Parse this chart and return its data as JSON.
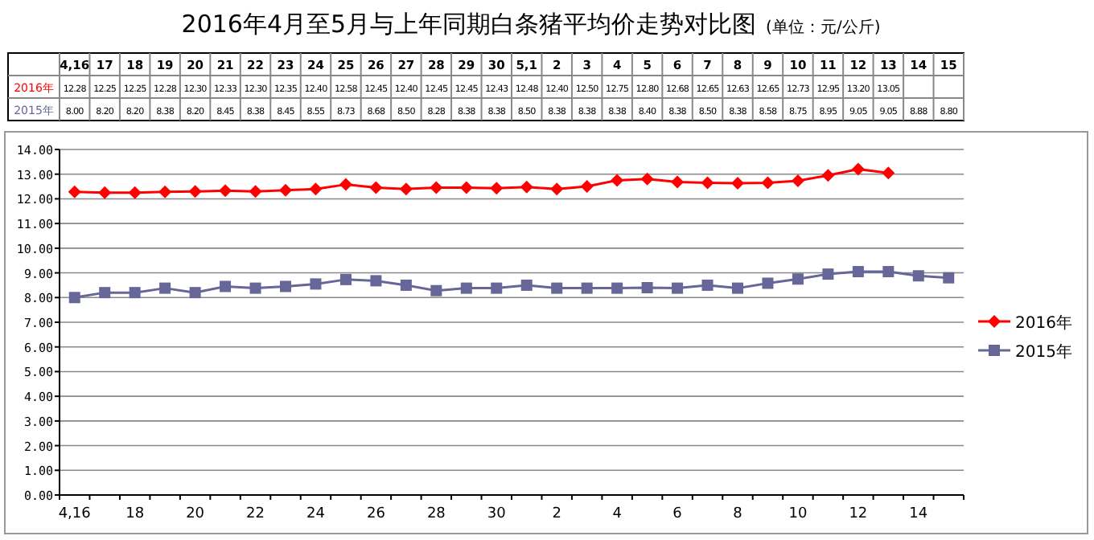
{
  "chart_data": {
    "type": "line",
    "title": "2016年4月至5月与上年同期白条猪平均价走势对比图",
    "subtitle": "(单位：元/公斤)",
    "categories": [
      "4,16",
      "17",
      "18",
      "19",
      "20",
      "21",
      "22",
      "23",
      "24",
      "25",
      "26",
      "27",
      "28",
      "29",
      "30",
      "5,1",
      "2",
      "3",
      "4",
      "5",
      "6",
      "7",
      "8",
      "9",
      "10",
      "11",
      "12",
      "13",
      "14",
      "15"
    ],
    "series": [
      {
        "name": "2016年",
        "color": "#ff0000",
        "marker": "diamond",
        "values": [
          12.28,
          12.25,
          12.25,
          12.28,
          12.3,
          12.33,
          12.3,
          12.35,
          12.4,
          12.58,
          12.45,
          12.4,
          12.45,
          12.45,
          12.43,
          12.48,
          12.4,
          12.5,
          12.75,
          12.8,
          12.68,
          12.65,
          12.63,
          12.65,
          12.73,
          12.95,
          13.2,
          13.05,
          null,
          null
        ],
        "value_labels": [
          "12.28",
          "12.25",
          "12.25",
          "12.28",
          "12.30",
          "12.33",
          "12.30",
          "12.35",
          "12.40",
          "12.58",
          "12.45",
          "12.40",
          "12.45",
          "12.45",
          "12.43",
          "12.48",
          "12.40",
          "12.50",
          "12.75",
          "12.80",
          "12.68",
          "12.65",
          "12.63",
          "12.65",
          "12.73",
          "12.95",
          "13.20",
          "13.05",
          null,
          null
        ]
      },
      {
        "name": "2015年",
        "color": "#666699",
        "marker": "square",
        "values": [
          8.0,
          8.2,
          8.2,
          8.38,
          8.2,
          8.45,
          8.38,
          8.45,
          8.55,
          8.73,
          8.68,
          8.5,
          8.28,
          8.38,
          8.38,
          8.5,
          8.38,
          8.38,
          8.38,
          8.4,
          8.38,
          8.5,
          8.38,
          8.58,
          8.75,
          8.95,
          9.05,
          9.05,
          8.88,
          8.8
        ],
        "value_labels": [
          "8.00",
          "8.20",
          "8.20",
          "8.38",
          "8.20",
          "8.45",
          "8.38",
          "8.45",
          "8.55",
          "8.73",
          "8.68",
          "8.50",
          "8.28",
          "8.38",
          "8.38",
          "8.50",
          "8.38",
          "8.38",
          "8.38",
          "8.40",
          "8.38",
          "8.50",
          "8.38",
          "8.58",
          "8.75",
          "8.95",
          "9.05",
          "9.05",
          "8.88",
          "8.80"
        ]
      }
    ],
    "ylim": [
      0,
      14
    ],
    "yticks": [
      {
        "value": 0,
        "label": "0.00"
      },
      {
        "value": 1,
        "label": "1.00"
      },
      {
        "value": 2,
        "label": "2.00"
      },
      {
        "value": 3,
        "label": "3.00"
      },
      {
        "value": 4,
        "label": "4.00"
      },
      {
        "value": 5,
        "label": "5.00"
      },
      {
        "value": 6,
        "label": "6.00"
      },
      {
        "value": 7,
        "label": "7.00"
      },
      {
        "value": 8,
        "label": "8.00"
      },
      {
        "value": 9,
        "label": "9.00"
      },
      {
        "value": 10,
        "label": "10.00"
      },
      {
        "value": 11,
        "label": "11.00"
      },
      {
        "value": 12,
        "label": "12.00"
      },
      {
        "value": 13,
        "label": "13.00"
      },
      {
        "value": 14,
        "label": "14.00"
      }
    ],
    "grid": "y",
    "legend": "right",
    "line_style": "solid"
  }
}
